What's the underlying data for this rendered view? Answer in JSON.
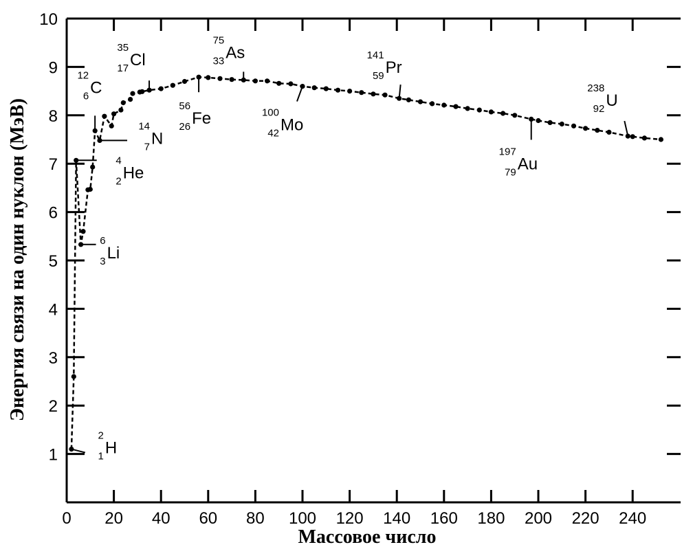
{
  "chart_data": {
    "type": "line",
    "xlabel": "Массовое число",
    "ylabel": "Энергия связи на один нуклон (МэВ)",
    "xlim": [
      0,
      255
    ],
    "ylim": [
      0,
      10
    ],
    "x_ticks": [
      "0",
      "20",
      "40",
      "60",
      "80",
      "100",
      "120",
      "140",
      "160",
      "180",
      "200",
      "220",
      "240"
    ],
    "y_ticks": [
      "1",
      "2",
      "3",
      "4",
      "5",
      "6",
      "7",
      "8",
      "9",
      "10"
    ],
    "grid": false,
    "series": [
      {
        "x": [
          2,
          3,
          4,
          6,
          7,
          9,
          10,
          11,
          12,
          14,
          16,
          19,
          20,
          23,
          24,
          27,
          28,
          31,
          32,
          35,
          40,
          45,
          50,
          56,
          60,
          65,
          70,
          75,
          80,
          85,
          90,
          95,
          100,
          105,
          110,
          115,
          120,
          125,
          130,
          135,
          141,
          145,
          150,
          155,
          160,
          165,
          170,
          175,
          180,
          185,
          190,
          197,
          200,
          205,
          210,
          215,
          220,
          225,
          230,
          238,
          240,
          245,
          252
        ],
        "y": [
          1.1,
          2.6,
          7.07,
          5.33,
          5.6,
          6.46,
          6.47,
          6.93,
          7.68,
          7.48,
          7.98,
          7.78,
          8.03,
          8.11,
          8.26,
          8.33,
          8.45,
          8.48,
          8.49,
          8.52,
          8.55,
          8.62,
          8.7,
          8.79,
          8.78,
          8.76,
          8.74,
          8.73,
          8.71,
          8.71,
          8.66,
          8.65,
          8.6,
          8.57,
          8.55,
          8.52,
          8.5,
          8.47,
          8.44,
          8.42,
          8.35,
          8.32,
          8.28,
          8.24,
          8.21,
          8.18,
          8.14,
          8.11,
          8.07,
          8.04,
          8.0,
          7.92,
          7.89,
          7.85,
          7.82,
          7.78,
          7.73,
          7.69,
          7.65,
          7.57,
          7.56,
          7.53,
          7.5
        ]
      }
    ],
    "annotations": [
      {
        "symbol": "H",
        "mass": "2",
        "z": "1",
        "x": 2,
        "y": 1.1
      },
      {
        "symbol": "Li",
        "mass": "6",
        "z": "3",
        "x": 6,
        "y": 5.33
      },
      {
        "symbol": "He",
        "mass": "4",
        "z": "2",
        "x": 4,
        "y": 7.07
      },
      {
        "symbol": "N",
        "mass": "14",
        "z": "7",
        "x": 14,
        "y": 7.48
      },
      {
        "symbol": "C",
        "mass": "12",
        "z": "6",
        "x": 12,
        "y": 7.68
      },
      {
        "symbol": "Cl",
        "mass": "35",
        "z": "17",
        "x": 35,
        "y": 8.52
      },
      {
        "symbol": "Fe",
        "mass": "56",
        "z": "26",
        "x": 56,
        "y": 8.79
      },
      {
        "symbol": "As",
        "mass": "75",
        "z": "33",
        "x": 75,
        "y": 8.73
      },
      {
        "symbol": "Mo",
        "mass": "100",
        "z": "42",
        "x": 100,
        "y": 8.6
      },
      {
        "symbol": "Pr",
        "mass": "141",
        "z": "59",
        "x": 141,
        "y": 8.35
      },
      {
        "symbol": "Au",
        "mass": "197",
        "z": "79",
        "x": 197,
        "y": 7.92
      },
      {
        "symbol": "U",
        "mass": "238",
        "z": "92",
        "x": 238,
        "y": 7.57
      }
    ]
  }
}
